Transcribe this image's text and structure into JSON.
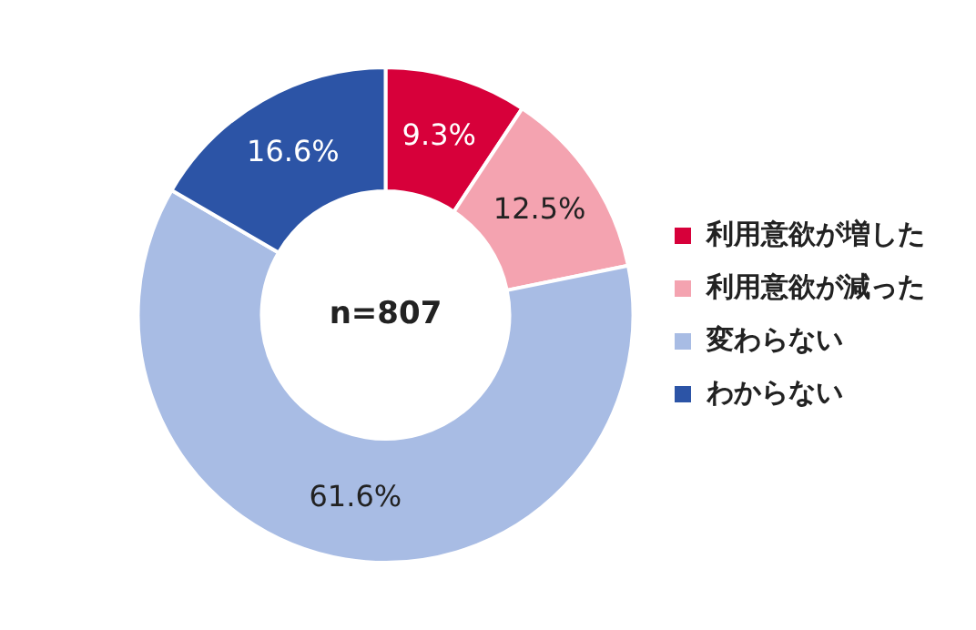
{
  "chart_data": {
    "type": "donut",
    "categories": [
      "利用意欲が増した",
      "利用意欲が減った",
      "変わらない",
      "わからない"
    ],
    "values": [
      9.3,
      12.5,
      61.6,
      16.6
    ],
    "colors": [
      "#d7003a",
      "#f4a3b0",
      "#a8bce4",
      "#2c54a6"
    ],
    "value_labels": [
      "9.3%",
      "12.5%",
      "61.6%",
      "16.6%"
    ],
    "annotations": [
      "n=807"
    ],
    "legend": "right"
  }
}
